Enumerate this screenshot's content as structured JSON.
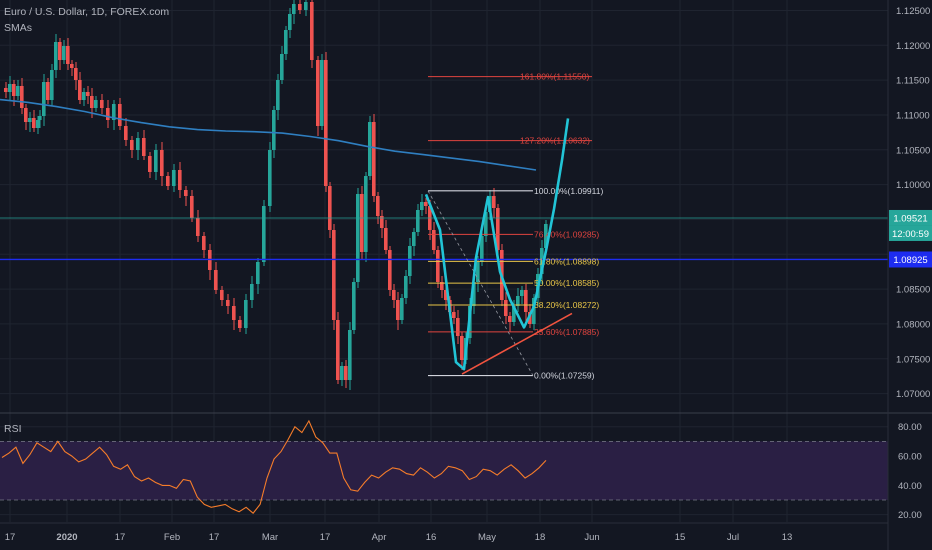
{
  "header": {
    "symbol_title": "Euro / U.S. Dollar, 1D, FOREX.com",
    "indicator_label": "SMAs",
    "rsi_label": "RSI"
  },
  "colors": {
    "background": "#131722",
    "grid": "#1f2430",
    "candle_up": "#26a69a",
    "candle_down": "#ef5350",
    "sma": "#2f7fc1",
    "projection": "#22c4d6",
    "trend": "#f0533f",
    "blue_level": "#1d2cf0",
    "rsi_line": "#f57c2a",
    "rsi_band": "#2a1f44",
    "price_badge": "#26a69a",
    "level_badge": "#1d2cf0"
  },
  "price_badges": {
    "last_price": "1.09521",
    "countdown": "12:00:59",
    "blue_level": "1.08925"
  },
  "chart_data": [
    {
      "type": "candlestick",
      "title": "Euro / U.S. Dollar, 1D, FOREX.com",
      "y_ticks": [
        "1.12500",
        "1.12000",
        "1.11500",
        "1.11000",
        "1.10500",
        "1.10000",
        "1.09500",
        "1.09000",
        "1.08500",
        "1.08000",
        "1.07500",
        "1.07000"
      ],
      "ylim": [
        1.0675,
        1.1265
      ],
      "x_ticks": [
        "17",
        "2020",
        "17",
        "Feb",
        "17",
        "Mar",
        "17",
        "Apr",
        "16",
        "May",
        "18",
        "Jun",
        "15",
        "Jul",
        "13"
      ],
      "last_price": 1.09521,
      "horizontal_levels": [
        {
          "value": 1.09521,
          "color": "#26a69a",
          "style": "solid"
        },
        {
          "value": 1.08925,
          "color": "#1d2cf0",
          "style": "solid"
        }
      ],
      "sma_line": [
        1.1122,
        1.1118,
        1.1112,
        1.1105,
        1.1096,
        1.1089,
        1.1083,
        1.1079,
        1.1077,
        1.1076,
        1.1074,
        1.1069,
        1.1063,
        1.1055,
        1.1048,
        1.1043,
        1.1038,
        1.1033,
        1.1027,
        1.1021
      ],
      "fibonacci": [
        {
          "label": "161.80%(1.11550)",
          "value": 1.1155
        },
        {
          "label": "127.20%(1.10632)",
          "value": 1.10632
        },
        {
          "label": "100.00%(1.09911)",
          "value": 1.09911
        },
        {
          "label": "76.40%(1.09285)",
          "value": 1.09285
        },
        {
          "label": "61.80%(1.08898)",
          "value": 1.08898
        },
        {
          "label": "50.00%(1.08585)",
          "value": 1.08585
        },
        {
          "label": "38.20%(1.08272)",
          "value": 1.08272
        },
        {
          "label": "23.60%(1.07885)",
          "value": 1.07885
        },
        {
          "label": "0.00%(1.07259)",
          "value": 1.07259
        }
      ],
      "projection_path": [
        1.0986,
        1.0935,
        1.0745,
        1.0735,
        1.0895,
        1.0982,
        1.0875,
        1.0835,
        1.0795,
        1.0825,
        1.0905,
        1.0965,
        1.1035,
        1.1095
      ],
      "trendline": [
        1.0728,
        1.0815
      ]
    },
    {
      "type": "line",
      "title": "RSI",
      "y_ticks": [
        "80.00",
        "60.00",
        "40.00",
        "20.00"
      ],
      "ylim": [
        15,
        88
      ],
      "bands": [
        70,
        30
      ],
      "values": [
        59,
        62,
        66,
        55,
        61,
        69,
        66,
        63,
        70,
        63,
        60,
        56,
        58,
        62,
        66,
        61,
        53,
        51,
        54,
        46,
        43,
        45,
        42,
        40,
        40,
        38,
        44,
        43,
        32,
        27,
        25,
        26,
        27,
        24,
        22,
        25,
        21,
        27,
        45,
        58,
        63,
        71,
        80,
        76,
        84,
        73,
        69,
        62,
        62,
        45,
        37,
        36,
        42,
        47,
        45,
        49,
        52,
        51,
        48,
        47,
        52,
        49,
        45,
        48,
        53,
        52,
        50,
        44,
        46,
        51,
        50,
        47,
        51,
        54,
        50,
        45,
        48,
        52,
        57
      ]
    }
  ]
}
